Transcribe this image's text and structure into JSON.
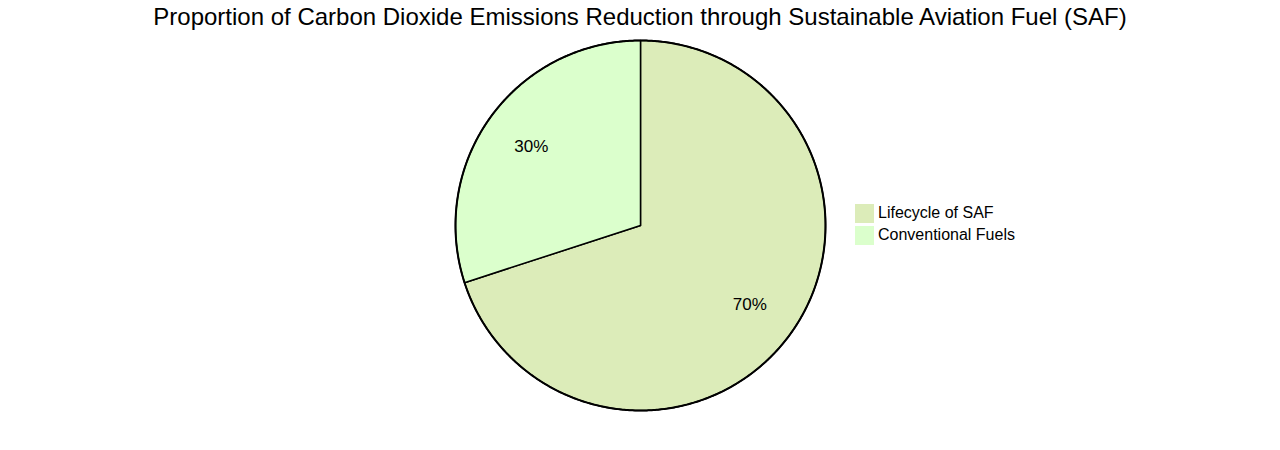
{
  "chart_data": {
    "type": "pie",
    "title": "Proportion of Carbon Dioxide Emissions Reduction through Sustainable Aviation Fuel (SAF)",
    "categories": [
      "Lifecycle of SAF",
      "Conventional Fuels"
    ],
    "values": [
      70,
      30
    ],
    "value_labels": [
      "70%",
      "30%"
    ],
    "colors": [
      "#dcecb9",
      "#dbffcc"
    ],
    "data_labels": true,
    "legend": "right"
  }
}
